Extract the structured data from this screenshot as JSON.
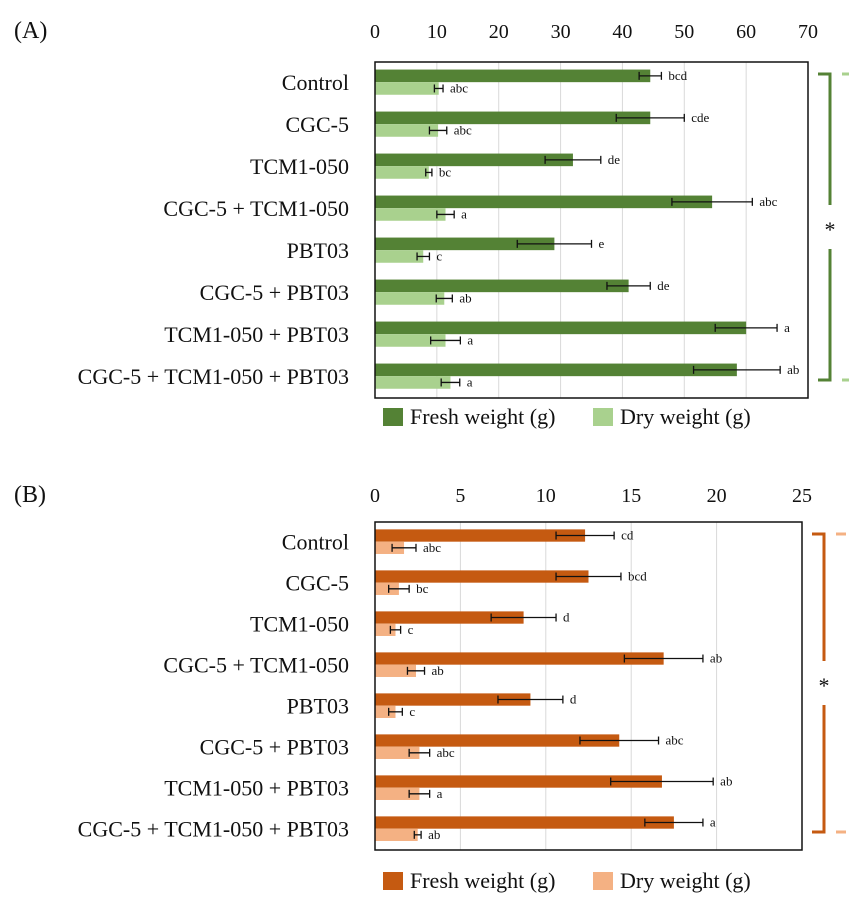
{
  "chart_data": [
    {
      "type": "bar",
      "orientation": "horizontal",
      "panel_label": "(A)",
      "categories": [
        "Control",
        "CGC-5",
        "TCM1-050",
        "CGC-5 + TCM1-050",
        "PBT03",
        "CGC-5 + PBT03",
        "TCM1-050 + PBT03",
        "CGC-5 + TCM1-050 + PBT03"
      ],
      "xlim": [
        0,
        70
      ],
      "xticks": [
        0,
        10,
        20,
        30,
        40,
        50,
        60,
        70
      ],
      "grid": true,
      "legend_position": "bottom",
      "significance_marker": "*",
      "colors": {
        "fresh": "#548235",
        "dry": "#a9d18e",
        "bracket": "#548235"
      },
      "series": [
        {
          "name": "Fresh weight (g)",
          "values": [
            44.5,
            44.5,
            32.0,
            54.5,
            29.0,
            41.0,
            60.0,
            58.5
          ],
          "errors": [
            1.8,
            5.5,
            4.5,
            6.5,
            6.0,
            3.5,
            5.0,
            7.0
          ],
          "letters": [
            "bcd",
            "cde",
            "de",
            "abc",
            "e",
            "de",
            "a",
            "ab"
          ]
        },
        {
          "name": "Dry weight (g)",
          "values": [
            10.3,
            10.2,
            8.7,
            11.4,
            7.8,
            11.2,
            11.4,
            12.2
          ],
          "errors": [
            0.7,
            1.4,
            0.5,
            1.4,
            1.0,
            1.3,
            2.4,
            1.5
          ],
          "letters": [
            "abc",
            "abc",
            "bc",
            "a",
            "c",
            "ab",
            "a",
            "a"
          ]
        }
      ]
    },
    {
      "type": "bar",
      "orientation": "horizontal",
      "panel_label": "(B)",
      "categories": [
        "Control",
        "CGC-5",
        "TCM1-050",
        "CGC-5 + TCM1-050",
        "PBT03",
        "CGC-5 + PBT03",
        "TCM1-050 + PBT03",
        "CGC-5 + TCM1-050 + PBT03"
      ],
      "xlim": [
        0,
        25
      ],
      "xticks": [
        0,
        5,
        10,
        15,
        20,
        25
      ],
      "grid": true,
      "legend_position": "bottom",
      "significance_marker": "*",
      "colors": {
        "fresh": "#c55a11",
        "dry": "#f4b183",
        "bracket": "#c55a11"
      },
      "series": [
        {
          "name": "Fresh weight (g)",
          "values": [
            12.3,
            12.5,
            8.7,
            16.9,
            9.1,
            14.3,
            16.8,
            17.5
          ],
          "errors": [
            1.7,
            1.9,
            1.9,
            2.3,
            1.9,
            2.3,
            3.0,
            1.7
          ],
          "letters": [
            "cd",
            "bcd",
            "d",
            "ab",
            "d",
            "abc",
            "ab",
            "a"
          ]
        },
        {
          "name": "Dry weight (g)",
          "values": [
            1.7,
            1.4,
            1.2,
            2.4,
            1.2,
            2.6,
            2.6,
            2.5
          ],
          "errors": [
            0.7,
            0.6,
            0.3,
            0.5,
            0.4,
            0.6,
            0.6,
            0.2
          ],
          "letters": [
            "abc",
            "bc",
            "c",
            "ab",
            "c",
            "abc",
            "a",
            "ab"
          ]
        }
      ]
    }
  ]
}
